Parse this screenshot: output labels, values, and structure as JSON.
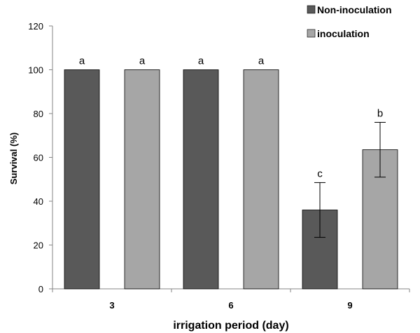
{
  "chart_data": {
    "type": "bar",
    "categories": [
      "3",
      "6",
      "9"
    ],
    "series": [
      {
        "name": "Non-inoculation",
        "color": "#595959",
        "values": [
          100,
          100,
          36
        ],
        "errors": [
          0,
          0,
          12.5
        ],
        "letters": [
          "a",
          "a",
          "c"
        ]
      },
      {
        "name": "inoculation",
        "color": "#a6a6a6",
        "values": [
          100,
          100,
          63.5
        ],
        "errors": [
          0,
          0,
          12.5
        ],
        "letters": [
          "a",
          "a",
          "b"
        ]
      }
    ],
    "xlabel": "irrigation period (day)",
    "ylabel": "Survival (%)",
    "ylim": [
      0,
      120
    ],
    "yticks": [
      "0",
      "20",
      "40",
      "60",
      "80",
      "100",
      "120"
    ],
    "grid": false,
    "legend_position": "top-right"
  }
}
